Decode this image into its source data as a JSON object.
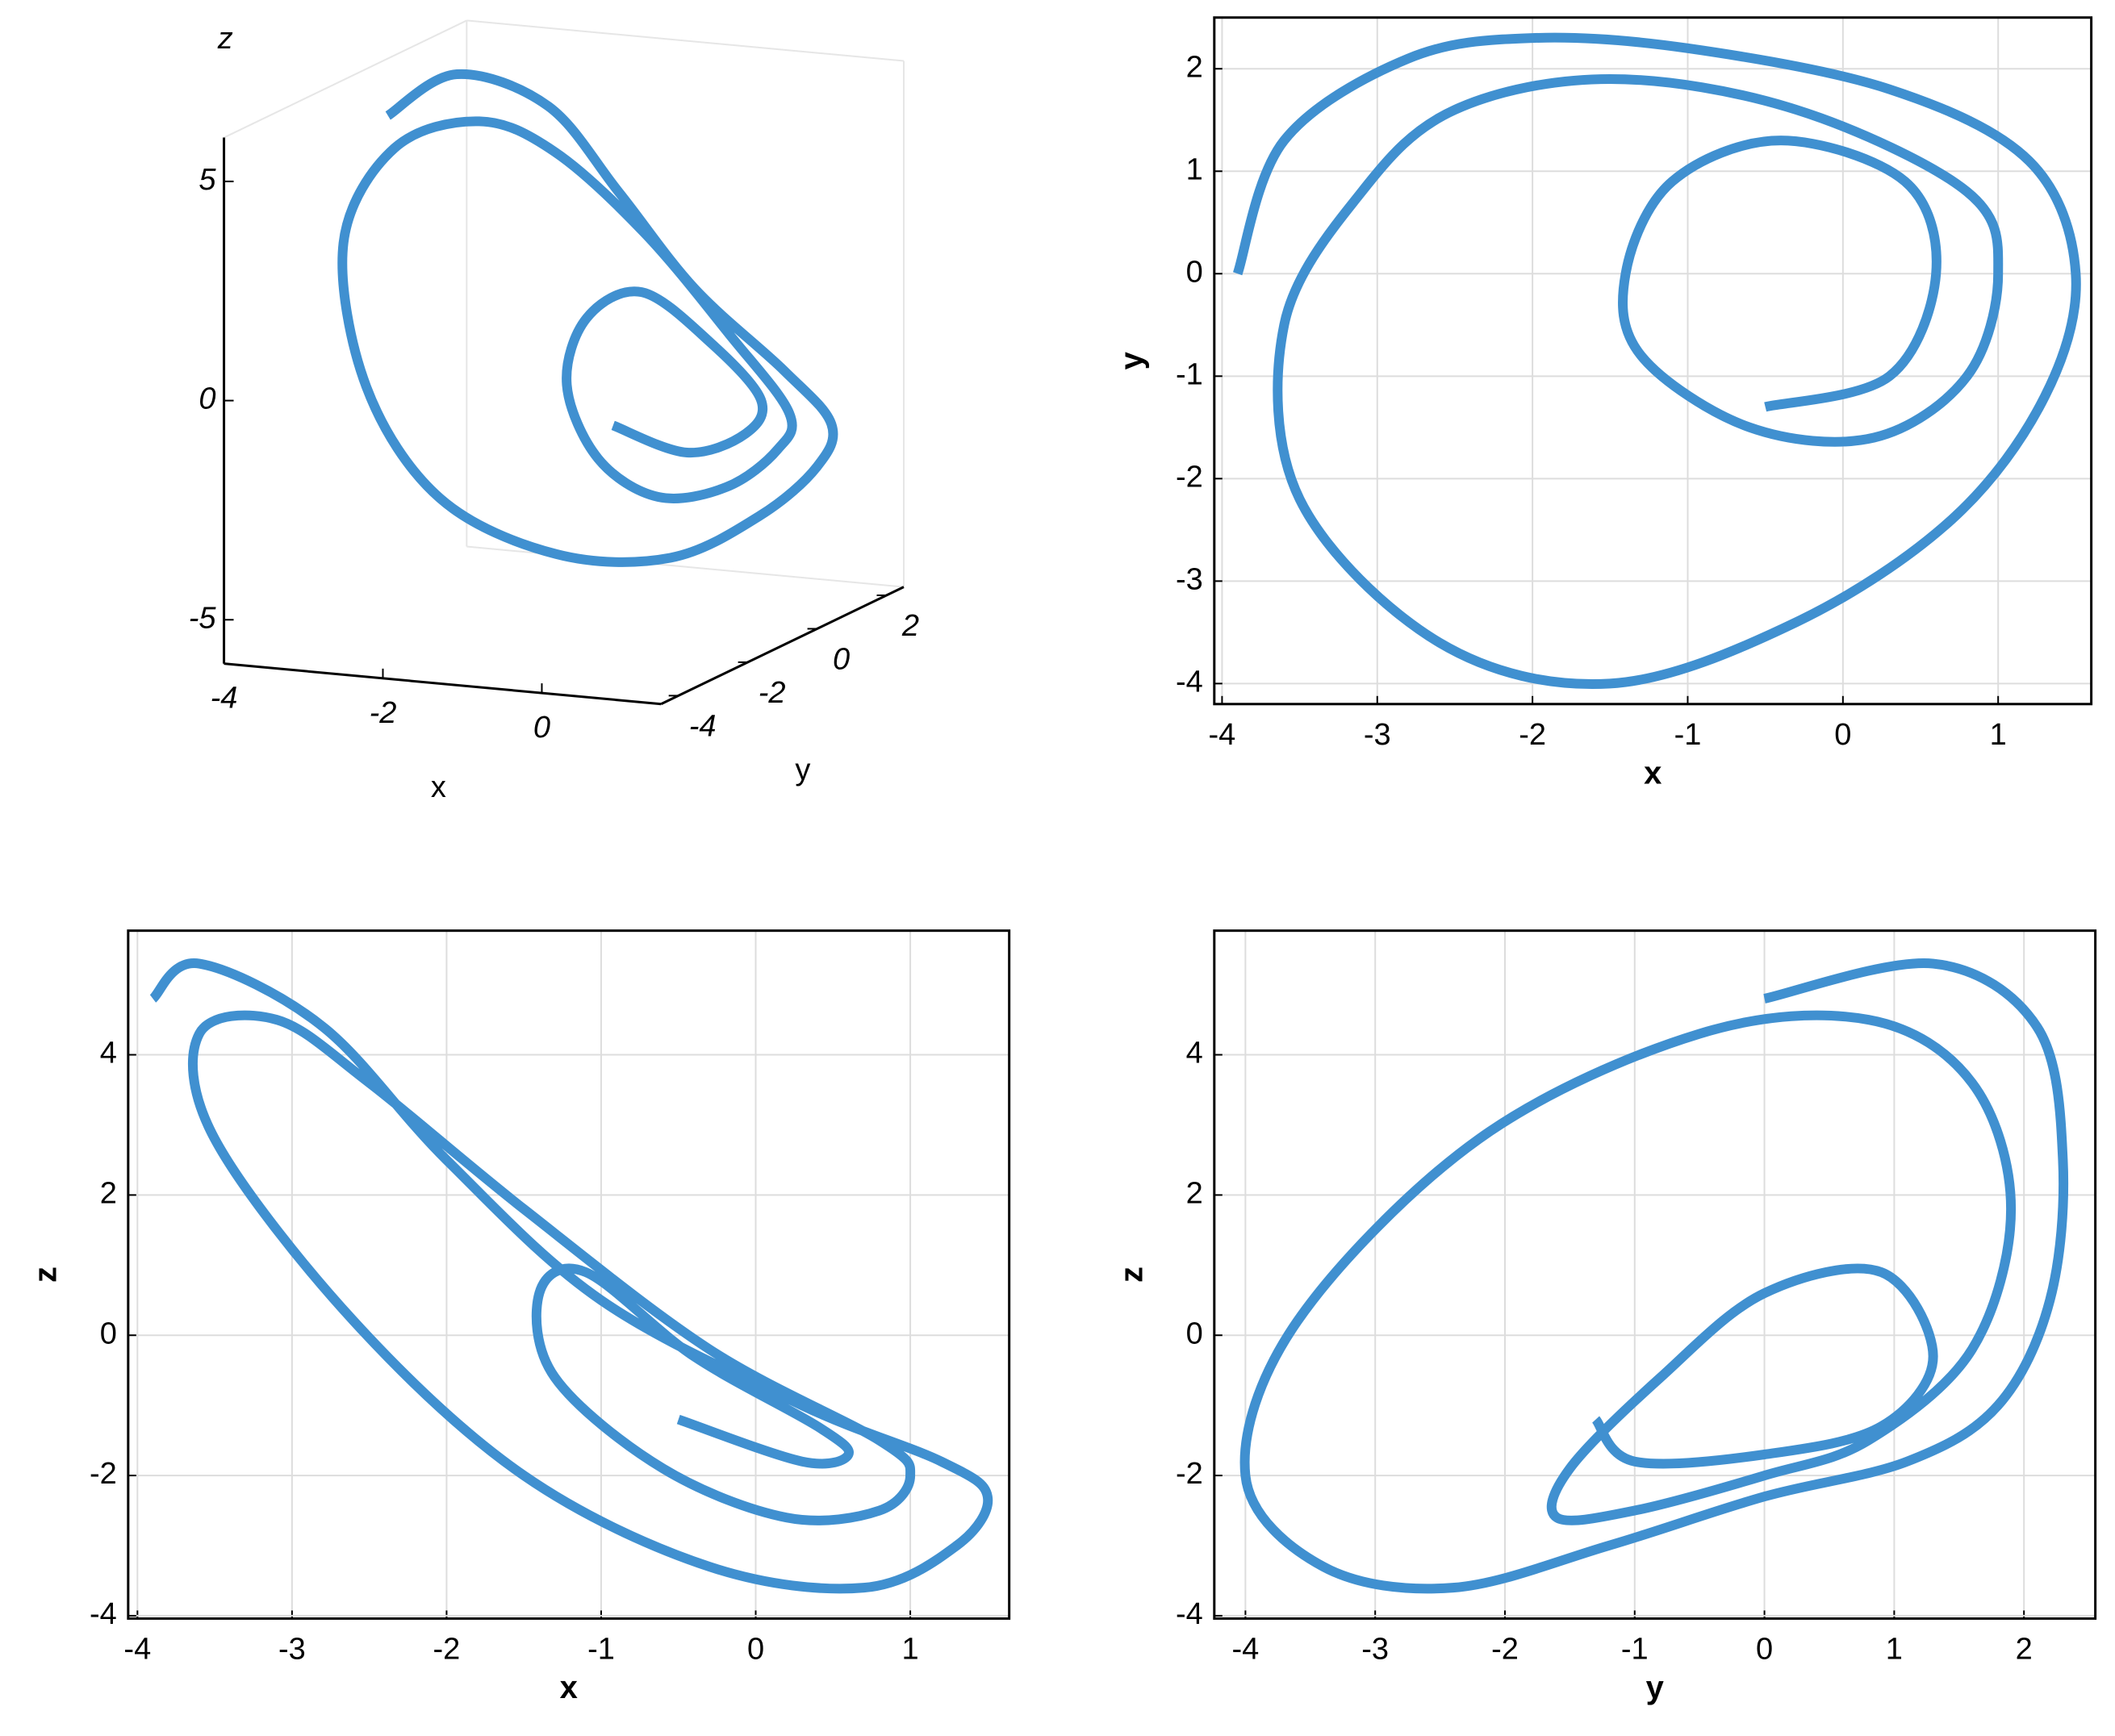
{
  "chart_data": [
    {
      "type": "line3d",
      "xlabel": "x",
      "ylabel": "y",
      "zlabel": "z",
      "color": "#4090d0",
      "xlim": [
        -4,
        1.5
      ],
      "ylim": [
        -4.5,
        2.5
      ],
      "zlim": [
        -6,
        6
      ],
      "xticks": [
        -4,
        -2,
        0
      ],
      "yticks": [
        -4,
        -2,
        0,
        2
      ],
      "zticks": [
        -5,
        0,
        5
      ],
      "x": [
        -3.9,
        -3.6,
        -2.8,
        -2.0,
        -1.0,
        0.3,
        1.2,
        1.5,
        1.3,
        0.7,
        -0.3,
        -1.5,
        -2.6,
        -3.5,
        -3.6,
        -3.1,
        -2.5,
        -1.5,
        -0.3,
        0.8,
        1.0,
        0.8,
        0.2,
        -0.6,
        -1.3,
        -1.4,
        -1.1,
        -0.4,
        0.4,
        0.6,
        0.3,
        -0.5
      ],
      "y": [
        0,
        1.3,
        2.1,
        2.3,
        2.2,
        1.8,
        1.1,
        0,
        -1.2,
        -2.4,
        -3.4,
        -4,
        -3.6,
        -2.2,
        -0.5,
        0.8,
        1.6,
        1.9,
        1.6,
        0.8,
        0,
        -1,
        -1.6,
        -1.5,
        -0.8,
        0,
        0.9,
        1.3,
        0.9,
        0,
        -1,
        -1.3
      ],
      "z": [
        4.8,
        5.3,
        4.4,
        2.5,
        0.5,
        -1.0,
        -1.8,
        -2.3,
        -3.0,
        -3.6,
        -3.3,
        -2.0,
        0.2,
        2.8,
        4.3,
        4.5,
        3.6,
        1.8,
        -0.2,
        -1.5,
        -2.0,
        -2.5,
        -2.6,
        -1.9,
        -0.6,
        0.6,
        0.9,
        -0.3,
        -1.3,
        -1.7,
        -1.8,
        -1.2
      ]
    },
    {
      "type": "line",
      "xlabel": "x",
      "ylabel": "y",
      "color": "#4090d0",
      "grid": true,
      "xlim": [
        -4.05,
        1.6
      ],
      "ylim": [
        -4.2,
        2.5
      ],
      "xticks": [
        -4,
        -3,
        -2,
        -1,
        0,
        1
      ],
      "yticks": [
        -4,
        -3,
        -2,
        -1,
        0,
        1,
        2
      ],
      "x": [
        -3.9,
        -3.6,
        -2.8,
        -2.0,
        -1.0,
        0.3,
        1.2,
        1.5,
        1.3,
        0.7,
        -0.3,
        -1.5,
        -2.6,
        -3.5,
        -3.6,
        -3.1,
        -2.5,
        -1.5,
        -0.3,
        0.8,
        1.0,
        0.8,
        0.2,
        -0.6,
        -1.3,
        -1.4,
        -1.1,
        -0.4,
        0.4,
        0.6,
        0.3,
        -0.5
      ],
      "values": [
        0,
        1.3,
        2.1,
        2.3,
        2.2,
        1.8,
        1.1,
        0,
        -1.2,
        -2.4,
        -3.4,
        -4,
        -3.6,
        -2.2,
        -0.5,
        0.8,
        1.6,
        1.9,
        1.6,
        0.8,
        0,
        -1,
        -1.6,
        -1.5,
        -0.8,
        0,
        0.9,
        1.3,
        0.9,
        0,
        -1,
        -1.3
      ]
    },
    {
      "type": "line",
      "xlabel": "x",
      "ylabel": "z",
      "color": "#4090d0",
      "grid": true,
      "xlim": [
        -4.06,
        1.64
      ],
      "ylim": [
        -4.04,
        5.77
      ],
      "xticks": [
        -4,
        -3,
        -2,
        -1,
        0,
        1
      ],
      "yticks": [
        -4,
        -2,
        0,
        2,
        4
      ],
      "x": [
        -3.9,
        -3.6,
        -2.8,
        -2.0,
        -1.0,
        0.3,
        1.2,
        1.5,
        1.3,
        0.7,
        -0.3,
        -1.5,
        -2.6,
        -3.5,
        -3.6,
        -3.1,
        -2.5,
        -1.5,
        -0.3,
        0.8,
        1.0,
        0.8,
        0.2,
        -0.6,
        -1.3,
        -1.4,
        -1.1,
        -0.4,
        0.4,
        0.6,
        0.3,
        -0.5
      ],
      "values": [
        4.8,
        5.3,
        4.4,
        2.5,
        0.5,
        -1.0,
        -1.8,
        -2.3,
        -3.0,
        -3.6,
        -3.3,
        -2.0,
        0.2,
        2.8,
        4.3,
        4.5,
        3.6,
        1.8,
        -0.2,
        -1.5,
        -2.0,
        -2.5,
        -2.6,
        -1.9,
        -0.6,
        0.6,
        0.9,
        -0.3,
        -1.3,
        -1.7,
        -1.8,
        -1.2
      ]
    },
    {
      "type": "line",
      "xlabel": "y",
      "ylabel": "z",
      "color": "#4090d0",
      "grid": true,
      "xlim": [
        -4.24,
        2.55
      ],
      "ylim": [
        -4.04,
        5.77
      ],
      "xticks": [
        -4,
        -3,
        -2,
        -1,
        0,
        1,
        2
      ],
      "yticks": [
        -4,
        -2,
        0,
        2,
        4
      ],
      "x": [
        0,
        1.3,
        2.1,
        2.3,
        2.2,
        1.8,
        1.1,
        0,
        -1.2,
        -2.4,
        -3.4,
        -4,
        -3.6,
        -2.2,
        -0.5,
        0.8,
        1.6,
        1.9,
        1.6,
        0.8,
        0,
        -1,
        -1.6,
        -1.5,
        -0.8,
        0,
        0.9,
        1.3,
        0.9,
        0,
        -1,
        -1.3
      ],
      "values": [
        4.8,
        5.3,
        4.4,
        2.5,
        0.5,
        -1.0,
        -1.8,
        -2.3,
        -3.0,
        -3.6,
        -3.3,
        -2.0,
        0.2,
        2.8,
        4.3,
        4.5,
        3.6,
        1.8,
        -0.2,
        -1.5,
        -2.0,
        -2.5,
        -2.6,
        -1.9,
        -0.6,
        0.6,
        0.9,
        -0.3,
        -1.3,
        -1.7,
        -1.8,
        -1.2
      ]
    }
  ]
}
